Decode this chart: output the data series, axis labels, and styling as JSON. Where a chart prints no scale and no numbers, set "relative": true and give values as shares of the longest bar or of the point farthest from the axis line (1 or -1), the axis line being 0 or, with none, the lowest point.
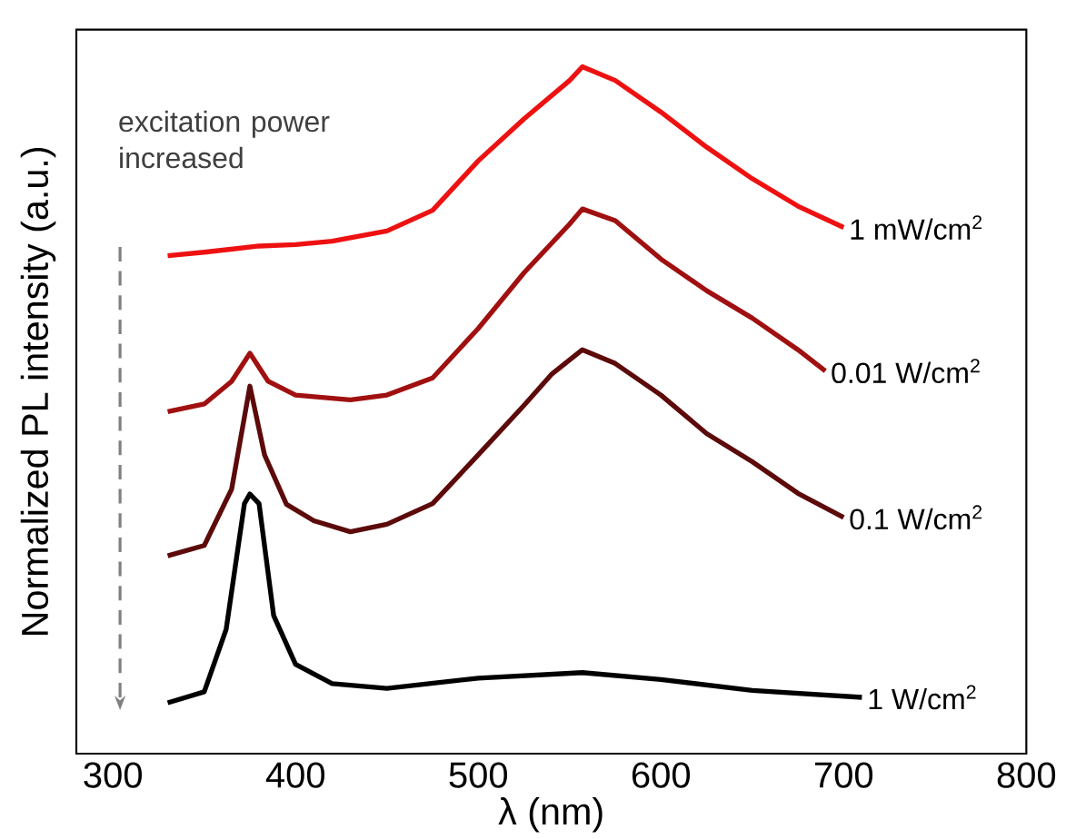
{
  "chart_data": {
    "type": "line",
    "relative": true,
    "xlabel": "λ (nm)",
    "ylabel": "Normalized PL intensity (a.u.)",
    "xlim": [
      280,
      800
    ],
    "xticks": [
      300,
      400,
      500,
      600,
      700,
      800
    ],
    "tick_labels": "x",
    "grid": false,
    "marker": "none",
    "line_style": "solid",
    "annotations": [
      "excitation power increased"
    ],
    "series": [
      {
        "name": "1 mW/cm$^{2}$",
        "color": "#ee1111",
        "x": [
          330,
          350,
          380,
          400,
          420,
          450,
          475,
          500,
          525,
          550,
          557,
          575,
          600,
          625,
          650,
          675,
          700
        ],
        "values": [
          0.725,
          0.73,
          0.739,
          0.741,
          0.746,
          0.761,
          0.791,
          0.863,
          0.924,
          0.98,
          1.0,
          0.98,
          0.934,
          0.883,
          0.837,
          0.797,
          0.766
        ]
      },
      {
        "name": "0.01 W/cm$^{2}$",
        "color": "#a01010",
        "x": [
          330,
          350,
          365,
          375,
          385,
          400,
          430,
          450,
          475,
          500,
          525,
          550,
          557,
          575,
          600,
          625,
          650,
          675,
          690
        ],
        "values": [
          0.498,
          0.509,
          0.542,
          0.583,
          0.542,
          0.522,
          0.515,
          0.522,
          0.547,
          0.619,
          0.7,
          0.771,
          0.793,
          0.776,
          0.72,
          0.674,
          0.634,
          0.588,
          0.557
        ]
      },
      {
        "name": "0.1 W/cm$^{2}$",
        "color": "#5c0a0a",
        "x": [
          330,
          350,
          365,
          375,
          383,
          395,
          410,
          430,
          450,
          475,
          500,
          525,
          540,
          557,
          575,
          600,
          625,
          650,
          675,
          700
        ],
        "values": [
          0.288,
          0.303,
          0.385,
          0.535,
          0.435,
          0.363,
          0.339,
          0.323,
          0.334,
          0.364,
          0.435,
          0.507,
          0.552,
          0.588,
          0.568,
          0.522,
          0.466,
          0.425,
          0.379,
          0.344
        ]
      },
      {
        "name": "1 W/cm$^{2}$",
        "color": "#000000",
        "x": [
          330,
          350,
          362,
          372,
          375,
          380,
          388,
          400,
          420,
          450,
          500,
          557,
          600,
          650,
          710
        ],
        "values": [
          0.074,
          0.09,
          0.181,
          0.364,
          0.378,
          0.364,
          0.201,
          0.13,
          0.102,
          0.095,
          0.11,
          0.118,
          0.108,
          0.092,
          0.082
        ]
      }
    ]
  }
}
